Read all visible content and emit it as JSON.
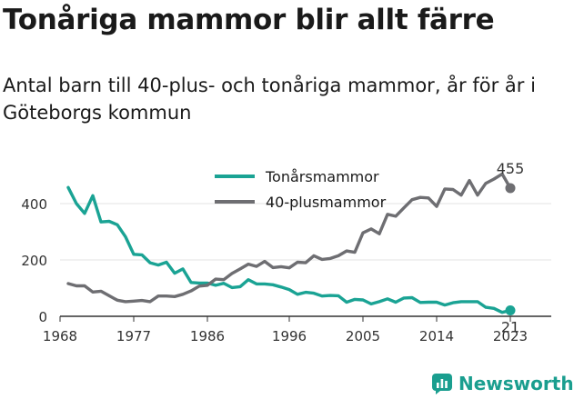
{
  "title": "Tonåriga mammor blir allt färre",
  "subtitle": "Antal barn till 40-plus- och tonåriga mammor, år för år i Göteborgs kommun",
  "brand": "Newsworthy",
  "chart_data": {
    "type": "line",
    "xlim": [
      1968,
      2023
    ],
    "ylim": [
      0,
      500
    ],
    "x_ticks": [
      "1968",
      "1977",
      "1986",
      "1996",
      "2005",
      "2014",
      "2023"
    ],
    "y_ticks": [
      "0",
      "200",
      "400"
    ],
    "legend_position": "top-center",
    "series": [
      {
        "name": "Tonårsmammor",
        "color": "#1aa394",
        "end_label": "21",
        "points": [
          [
            1969,
            457
          ],
          [
            1970,
            400
          ],
          [
            1971,
            365
          ],
          [
            1972,
            428
          ],
          [
            1973,
            335
          ],
          [
            1974,
            337
          ],
          [
            1975,
            325
          ],
          [
            1976,
            282
          ],
          [
            1977,
            220
          ],
          [
            1978,
            218
          ],
          [
            1979,
            190
          ],
          [
            1980,
            182
          ],
          [
            1981,
            192
          ],
          [
            1982,
            153
          ],
          [
            1983,
            168
          ],
          [
            1984,
            120
          ],
          [
            1985,
            118
          ],
          [
            1986,
            118
          ],
          [
            1987,
            110
          ],
          [
            1988,
            117
          ],
          [
            1989,
            102
          ],
          [
            1990,
            105
          ],
          [
            1991,
            130
          ],
          [
            1992,
            115
          ],
          [
            1993,
            115
          ],
          [
            1994,
            112
          ],
          [
            1995,
            104
          ],
          [
            1996,
            95
          ],
          [
            1997,
            78
          ],
          [
            1998,
            85
          ],
          [
            1999,
            82
          ],
          [
            2000,
            72
          ],
          [
            2001,
            74
          ],
          [
            2002,
            73
          ],
          [
            2003,
            50
          ],
          [
            2004,
            60
          ],
          [
            2005,
            58
          ],
          [
            2006,
            44
          ],
          [
            2007,
            52
          ],
          [
            2008,
            62
          ],
          [
            2009,
            50
          ],
          [
            2010,
            65
          ],
          [
            2011,
            66
          ],
          [
            2012,
            49
          ],
          [
            2013,
            50
          ],
          [
            2014,
            50
          ],
          [
            2015,
            40
          ],
          [
            2016,
            48
          ],
          [
            2017,
            52
          ],
          [
            2018,
            52
          ],
          [
            2019,
            52
          ],
          [
            2020,
            32
          ],
          [
            2021,
            28
          ],
          [
            2022,
            14
          ],
          [
            2023,
            21
          ]
        ]
      },
      {
        "name": "40-plusmammor",
        "color": "#6e6e72",
        "end_label": "455",
        "points": [
          [
            1969,
            116
          ],
          [
            1970,
            108
          ],
          [
            1971,
            108
          ],
          [
            1972,
            86
          ],
          [
            1973,
            89
          ],
          [
            1974,
            73
          ],
          [
            1975,
            57
          ],
          [
            1976,
            52
          ],
          [
            1977,
            54
          ],
          [
            1978,
            56
          ],
          [
            1979,
            52
          ],
          [
            1980,
            72
          ],
          [
            1981,
            72
          ],
          [
            1982,
            70
          ],
          [
            1983,
            78
          ],
          [
            1984,
            90
          ],
          [
            1985,
            107
          ],
          [
            1986,
            110
          ],
          [
            1987,
            132
          ],
          [
            1988,
            130
          ],
          [
            1989,
            152
          ],
          [
            1990,
            168
          ],
          [
            1991,
            185
          ],
          [
            1992,
            177
          ],
          [
            1993,
            195
          ],
          [
            1994,
            173
          ],
          [
            1995,
            176
          ],
          [
            1996,
            172
          ],
          [
            1997,
            192
          ],
          [
            1998,
            190
          ],
          [
            1999,
            215
          ],
          [
            2000,
            202
          ],
          [
            2001,
            205
          ],
          [
            2002,
            215
          ],
          [
            2003,
            232
          ],
          [
            2004,
            227
          ],
          [
            2005,
            296
          ],
          [
            2006,
            310
          ],
          [
            2007,
            293
          ],
          [
            2008,
            362
          ],
          [
            2009,
            355
          ],
          [
            2010,
            385
          ],
          [
            2011,
            414
          ],
          [
            2012,
            422
          ],
          [
            2013,
            420
          ],
          [
            2014,
            390
          ],
          [
            2015,
            452
          ],
          [
            2016,
            450
          ],
          [
            2017,
            430
          ],
          [
            2018,
            482
          ],
          [
            2019,
            430
          ],
          [
            2020,
            472
          ],
          [
            2021,
            487
          ],
          [
            2022,
            505
          ],
          [
            2023,
            455
          ]
        ]
      }
    ]
  }
}
